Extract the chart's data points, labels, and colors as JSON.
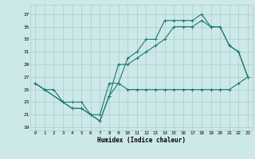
{
  "xlabel": "Humidex (Indice chaleur)",
  "bg_color": "#cce8e8",
  "grid_color": "#aacccc",
  "line_color": "#1a7a6e",
  "xlim": [
    -0.5,
    23.5
  ],
  "ylim": [
    18.5,
    38.5
  ],
  "xticks": [
    0,
    1,
    2,
    3,
    4,
    5,
    6,
    7,
    8,
    9,
    10,
    11,
    12,
    13,
    14,
    15,
    16,
    17,
    18,
    19,
    20,
    21,
    22,
    23
  ],
  "yticks": [
    19,
    21,
    23,
    25,
    27,
    29,
    31,
    33,
    35,
    37
  ],
  "line1_x": [
    0,
    1,
    2,
    3,
    4,
    5,
    6,
    7,
    8,
    9,
    10,
    11,
    12,
    13,
    14,
    15,
    16,
    17,
    18,
    19,
    20,
    21,
    22,
    23
  ],
  "line1_y": [
    26,
    25,
    25,
    23,
    23,
    23,
    21,
    21,
    26,
    26,
    25,
    25,
    25,
    25,
    25,
    25,
    25,
    25,
    25,
    25,
    25,
    25,
    26,
    27
  ],
  "line2_x": [
    0,
    1,
    3,
    4,
    5,
    6,
    7,
    8,
    9,
    10,
    11,
    12,
    13,
    14,
    15,
    16,
    17,
    18,
    19,
    20,
    21,
    22,
    23
  ],
  "line2_y": [
    26,
    25,
    23,
    22,
    22,
    21,
    20,
    24,
    29,
    29,
    30,
    31,
    32,
    33,
    35,
    35,
    35,
    36,
    35,
    35,
    32,
    31,
    27
  ],
  "line3_x": [
    0,
    3,
    4,
    5,
    6,
    7,
    8,
    9,
    10,
    11,
    12,
    13,
    14,
    15,
    16,
    17,
    18,
    19,
    20,
    21,
    22,
    23
  ],
  "line3_y": [
    26,
    23,
    22,
    22,
    21,
    20,
    24,
    26,
    30,
    31,
    33,
    33,
    36,
    36,
    36,
    36,
    37,
    35,
    35,
    32,
    31,
    27
  ]
}
